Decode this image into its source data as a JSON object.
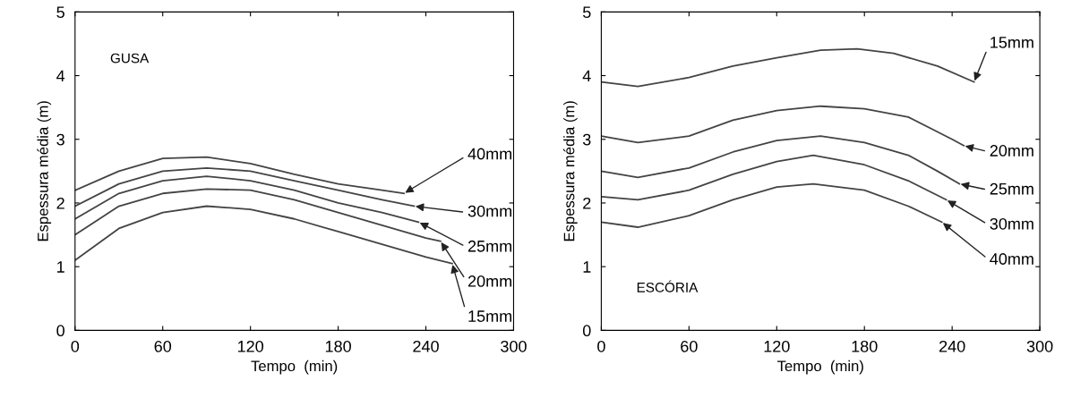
{
  "chart_data": [
    {
      "type": "line",
      "xlabel": "Tempo  (min)",
      "ylabel": "Espessura média (m)",
      "annotations": [
        "GUSA"
      ],
      "xlim": [
        0,
        300
      ],
      "xticks": [
        0,
        60,
        120,
        180,
        240,
        300
      ],
      "ylim": [
        0,
        5
      ],
      "yticks": [
        0,
        1,
        2,
        3,
        4,
        5
      ],
      "grid": false,
      "legend": false,
      "marker": "none",
      "line_style": "solid",
      "series": [
        {
          "name": "40mm",
          "color": "#444444",
          "x": [
            0,
            30,
            60,
            90,
            120,
            150,
            180,
            210,
            225
          ],
          "values": [
            2.2,
            2.5,
            2.7,
            2.72,
            2.62,
            2.45,
            2.3,
            2.2,
            2.15
          ]
        },
        {
          "name": "30mm",
          "color": "#444444",
          "x": [
            0,
            30,
            60,
            90,
            120,
            150,
            180,
            210,
            232
          ],
          "values": [
            1.95,
            2.3,
            2.5,
            2.55,
            2.5,
            2.35,
            2.2,
            2.05,
            1.95
          ]
        },
        {
          "name": "25mm",
          "color": "#444444",
          "x": [
            0,
            30,
            60,
            90,
            120,
            150,
            180,
            210,
            235
          ],
          "values": [
            1.75,
            2.15,
            2.35,
            2.42,
            2.35,
            2.2,
            2.0,
            1.85,
            1.7
          ]
        },
        {
          "name": "20mm",
          "color": "#444444",
          "x": [
            0,
            30,
            60,
            90,
            120,
            150,
            180,
            210,
            240,
            250
          ],
          "values": [
            1.5,
            1.95,
            2.15,
            2.22,
            2.2,
            2.05,
            1.85,
            1.65,
            1.45,
            1.4
          ]
        },
        {
          "name": "15mm",
          "color": "#444444",
          "x": [
            0,
            30,
            60,
            90,
            120,
            150,
            180,
            210,
            240,
            258
          ],
          "values": [
            1.1,
            1.6,
            1.85,
            1.95,
            1.9,
            1.75,
            1.55,
            1.35,
            1.15,
            1.05
          ]
        }
      ]
    },
    {
      "type": "line",
      "xlabel": "Tempo  (min)",
      "ylabel": "Espessura média (m)",
      "annotations": [
        "ESCÓRIA"
      ],
      "xlim": [
        0,
        300
      ],
      "xticks": [
        0,
        60,
        120,
        180,
        240,
        300
      ],
      "ylim": [
        0,
        5
      ],
      "yticks": [
        0,
        1,
        2,
        3,
        4,
        5
      ],
      "grid": false,
      "legend": false,
      "marker": "none",
      "line_style": "solid",
      "series": [
        {
          "name": "15mm",
          "color": "#444444",
          "x": [
            0,
            25,
            60,
            90,
            120,
            150,
            175,
            200,
            230,
            255
          ],
          "values": [
            3.9,
            3.83,
            3.97,
            4.15,
            4.28,
            4.4,
            4.42,
            4.35,
            4.15,
            3.9
          ]
        },
        {
          "name": "20mm",
          "color": "#444444",
          "x": [
            0,
            25,
            60,
            90,
            120,
            150,
            180,
            210,
            240,
            248
          ],
          "values": [
            3.05,
            2.95,
            3.05,
            3.3,
            3.45,
            3.52,
            3.48,
            3.35,
            3.0,
            2.9
          ]
        },
        {
          "name": "25mm",
          "color": "#444444",
          "x": [
            0,
            25,
            60,
            90,
            120,
            150,
            180,
            210,
            230,
            245
          ],
          "values": [
            2.5,
            2.4,
            2.55,
            2.8,
            2.98,
            3.05,
            2.95,
            2.75,
            2.5,
            2.3
          ]
        },
        {
          "name": "30mm",
          "color": "#444444",
          "x": [
            0,
            25,
            60,
            90,
            120,
            145,
            180,
            210,
            236
          ],
          "values": [
            2.1,
            2.05,
            2.2,
            2.45,
            2.65,
            2.75,
            2.6,
            2.35,
            2.05
          ]
        },
        {
          "name": "40mm",
          "color": "#444444",
          "x": [
            0,
            25,
            60,
            90,
            120,
            145,
            180,
            210,
            233
          ],
          "values": [
            1.7,
            1.62,
            1.8,
            2.05,
            2.25,
            2.3,
            2.2,
            1.95,
            1.7
          ]
        }
      ]
    }
  ]
}
